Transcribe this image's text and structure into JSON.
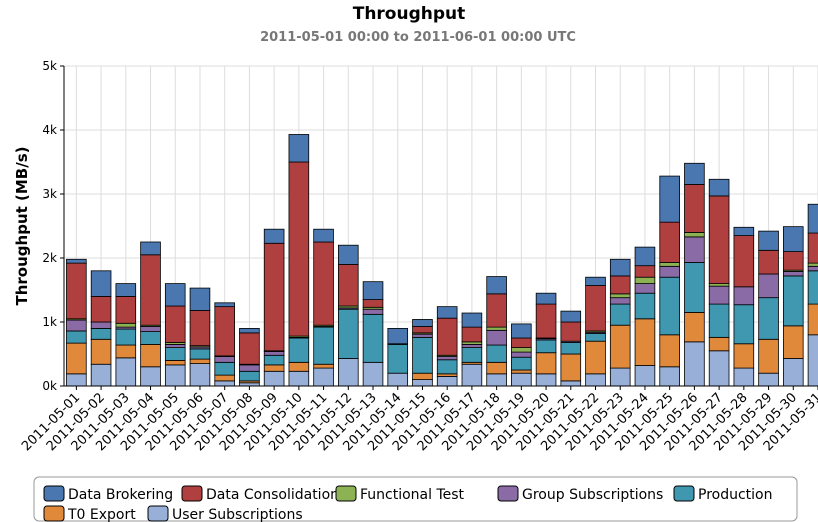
{
  "chart_data": {
    "type": "stacked_bar",
    "title": "Throughput",
    "subtitle": "2011-05-01 00:00 to 2011-06-01 00:00 UTC",
    "y_label": "Throughput (MB/s)",
    "categories": [
      "2011-05-01",
      "2011-05-02",
      "2011-05-03",
      "2011-05-04",
      "2011-05-05",
      "2011-05-06",
      "2011-05-07",
      "2011-05-08",
      "2011-05-09",
      "2011-05-10",
      "2011-05-11",
      "2011-05-12",
      "2011-05-13",
      "2011-05-14",
      "2011-05-15",
      "2011-05-16",
      "2011-05-17",
      "2011-05-18",
      "2011-05-19",
      "2011-05-20",
      "2011-05-21",
      "2011-05-22",
      "2011-05-23",
      "2011-05-24",
      "2011-05-25",
      "2011-05-26",
      "2011-05-27",
      "2011-05-28",
      "2011-05-29",
      "2011-05-30",
      "2011-05-31"
    ],
    "ylim": [
      0,
      5000
    ],
    "yticks": [
      {
        "value": 0,
        "label": "0k"
      },
      {
        "value": 1000,
        "label": "1k"
      },
      {
        "value": 2000,
        "label": "2k"
      },
      {
        "value": 3000,
        "label": "3k"
      },
      {
        "value": 4000,
        "label": "4k"
      },
      {
        "value": 5000,
        "label": "5k"
      }
    ],
    "grid": true,
    "legend": "bottom",
    "series": [
      {
        "name": "User Subscriptions",
        "color": "#98b0d8",
        "values": [
          190,
          340,
          440,
          300,
          330,
          350,
          80,
          50,
          230,
          230,
          280,
          430,
          370,
          200,
          100,
          150,
          340,
          190,
          200,
          190,
          80,
          190,
          280,
          320,
          300,
          690,
          550,
          280,
          200,
          430,
          800
        ]
      },
      {
        "name": "T0 Export",
        "color": "#e0893b",
        "values": [
          480,
          390,
          200,
          350,
          70,
          70,
          90,
          30,
          100,
          140,
          60,
          0,
          0,
          0,
          100,
          40,
          30,
          180,
          50,
          330,
          420,
          510,
          670,
          730,
          500,
          460,
          210,
          380,
          530,
          510,
          480
        ]
      },
      {
        "name": "Production",
        "color": "#3f97b0",
        "values": [
          190,
          170,
          250,
          200,
          200,
          160,
          200,
          150,
          150,
          380,
          580,
          770,
          750,
          450,
          560,
          220,
          230,
          270,
          200,
          200,
          180,
          120,
          330,
          400,
          900,
          780,
          520,
          610,
          650,
          780,
          520
        ]
      },
      {
        "name": "Group Subscriptions",
        "color": "#8a6ba6",
        "values": [
          170,
          100,
          30,
          80,
          50,
          30,
          90,
          100,
          60,
          10,
          10,
          20,
          80,
          10,
          50,
          50,
          50,
          230,
          80,
          20,
          20,
          20,
          100,
          150,
          170,
          400,
          280,
          280,
          370,
          70,
          70
        ]
      },
      {
        "name": "Functional Test",
        "color": "#8db253",
        "values": [
          20,
          0,
          60,
          20,
          30,
          20,
          10,
          10,
          10,
          20,
          20,
          30,
          30,
          0,
          20,
          20,
          40,
          50,
          70,
          10,
          0,
          20,
          60,
          100,
          60,
          70,
          40,
          0,
          0,
          20,
          50
        ]
      },
      {
        "name": "Data Consolidation",
        "color": "#b0403f",
        "values": [
          870,
          400,
          420,
          1100,
          570,
          550,
          770,
          490,
          1680,
          2720,
          1300,
          650,
          120,
          0,
          100,
          580,
          230,
          520,
          150,
          530,
          300,
          710,
          280,
          180,
          630,
          750,
          1370,
          800,
          370,
          290,
          470
        ]
      },
      {
        "name": "Data Brokering",
        "color": "#4a77b0",
        "values": [
          60,
          400,
          200,
          200,
          350,
          350,
          60,
          70,
          220,
          430,
          200,
          300,
          280,
          240,
          110,
          180,
          220,
          270,
          220,
          170,
          170,
          130,
          260,
          290,
          720,
          330,
          260,
          130,
          300,
          390,
          450
        ]
      }
    ]
  }
}
